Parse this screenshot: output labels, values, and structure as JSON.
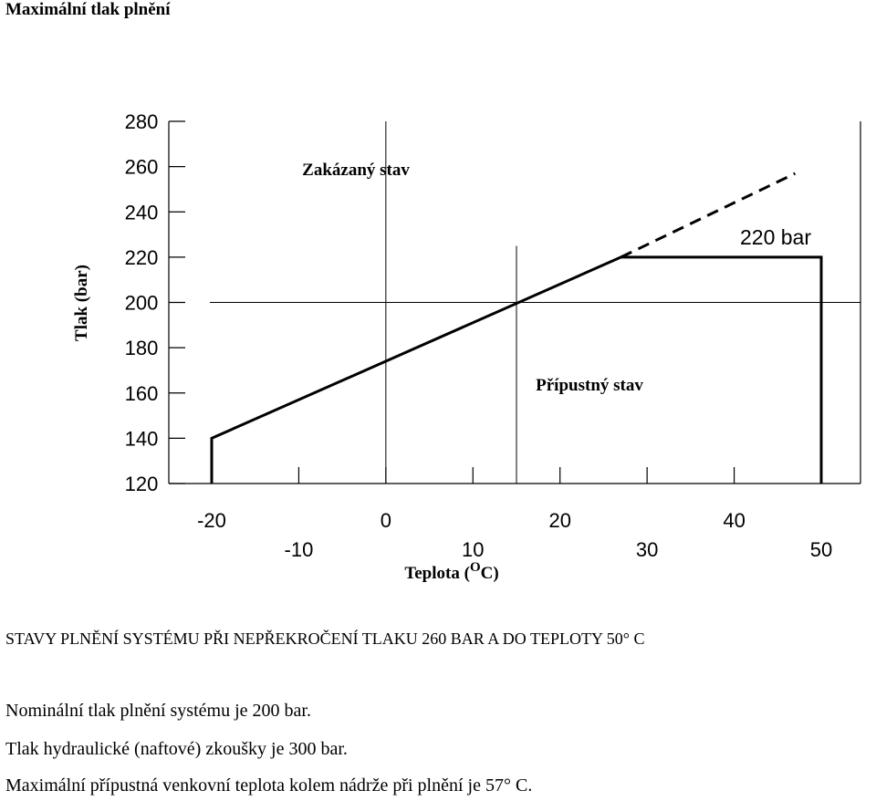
{
  "page": {
    "title": "Maximální tlak plnění",
    "caption": "STAVY PLNĚNÍ SYSTÉMU PŘI NEPŘEKROČENÍ TLAKU 260 BAR A DO TEPLOTY 50° C",
    "notes": [
      "Nominální tlak plnění systému je 200 bar.",
      "Tlak hydraulické (naftové) zkoušky je 300 bar.",
      "Maximální přípustná venkovní teplota kolem nádrže při plnění je 57° C."
    ]
  },
  "chart_data": {
    "type": "line",
    "xlabel": "Teplota (°C)",
    "xlabel_prefix": "Teplota (",
    "xlabel_unit_sup": "O",
    "xlabel_suffix": "C)",
    "ylabel": "Tlak (bar)",
    "xlim": [
      -20,
      50
    ],
    "ylim": [
      120,
      280
    ],
    "x_ticks_upper": [
      "-20",
      "0",
      "20",
      "40"
    ],
    "x_ticks_lower": [
      "-10",
      "10",
      "30",
      "50"
    ],
    "y_ticks": [
      "120",
      "140",
      "160",
      "180",
      "200",
      "220",
      "240",
      "260",
      "280"
    ],
    "grid": false,
    "series": [
      {
        "style": "solid",
        "points": [
          [
            -20,
            120
          ],
          [
            -20,
            140
          ],
          [
            27,
            220
          ],
          [
            50,
            220
          ],
          [
            50,
            120
          ]
        ]
      },
      {
        "style": "dashed",
        "points": [
          [
            27,
            220
          ],
          [
            47,
            257
          ]
        ]
      }
    ],
    "reference_lines": [
      {
        "orientation": "horizontal",
        "value": 200
      },
      {
        "orientation": "vertical",
        "value": 0
      },
      {
        "orientation": "vertical",
        "value": 15
      }
    ],
    "annotations": {
      "forbidden": "Zakázaný stav",
      "permitted": "Přípustný stav",
      "limit": "220 bar"
    },
    "colors": {
      "line": "#000000"
    }
  }
}
